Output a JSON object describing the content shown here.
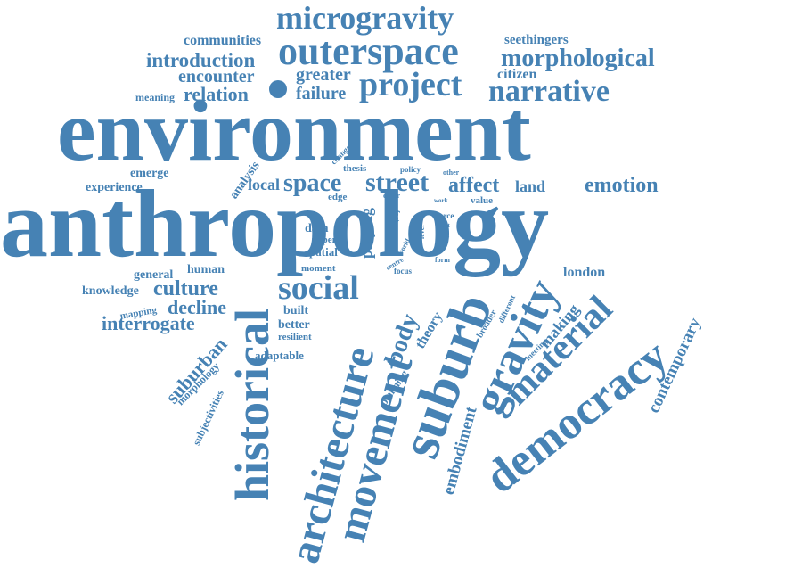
{
  "colors": {
    "word": "#4682b4",
    "background": "#ffffff"
  },
  "words": [
    {
      "text": "environment",
      "weight": 100
    },
    {
      "text": "anthropology",
      "weight": 98
    },
    {
      "text": "microgravity",
      "weight": 40
    },
    {
      "text": "outerspace",
      "weight": 45
    },
    {
      "text": "project",
      "weight": 40
    },
    {
      "text": "narrative",
      "weight": 35
    },
    {
      "text": "morphological",
      "weight": 30
    },
    {
      "text": "communities",
      "weight": 15
    },
    {
      "text": "introduction",
      "weight": 22
    },
    {
      "text": "encounter",
      "weight": 20
    },
    {
      "text": "greater",
      "weight": 18
    },
    {
      "text": "citizen",
      "weight": 16
    },
    {
      "text": "seethingers",
      "weight": 14
    },
    {
      "text": "relation",
      "weight": 22
    },
    {
      "text": "failure",
      "weight": 20
    },
    {
      "text": "meaning",
      "weight": 12
    },
    {
      "text": "analysis",
      "weight": 14
    },
    {
      "text": "change",
      "weight": 8
    },
    {
      "text": "thesis",
      "weight": 10
    },
    {
      "text": "policy",
      "weight": 8
    },
    {
      "text": "other",
      "weight": 7
    },
    {
      "text": "emerge",
      "weight": 14
    },
    {
      "text": "experience",
      "weight": 14
    },
    {
      "text": "local",
      "weight": 18
    },
    {
      "text": "space",
      "weight": 28
    },
    {
      "text": "street",
      "weight": 30
    },
    {
      "text": "affect",
      "weight": 24
    },
    {
      "text": "land",
      "weight": 18
    },
    {
      "text": "emotion",
      "weight": 24
    },
    {
      "text": "edge",
      "weight": 10
    },
    {
      "text": "order",
      "weight": 7
    },
    {
      "text": "work",
      "weight": 6
    },
    {
      "text": "value",
      "weight": 10
    },
    {
      "text": "fact",
      "weight": 6
    },
    {
      "text": "force",
      "weight": 8
    },
    {
      "text": "part",
      "weight": 6
    },
    {
      "text": "data",
      "weight": 12
    },
    {
      "text": "paper",
      "weight": 10
    },
    {
      "text": "spatial",
      "weight": 12
    },
    {
      "text": "playing",
      "weight": 16
    },
    {
      "text": "world",
      "weight": 7
    },
    {
      "text": "level",
      "weight": 7
    },
    {
      "text": "retail",
      "weight": 7
    },
    {
      "text": "centre",
      "weight": 7
    },
    {
      "text": "form",
      "weight": 7
    },
    {
      "text": "focus",
      "weight": 8
    },
    {
      "text": "moment",
      "weight": 10
    },
    {
      "text": "general",
      "weight": 14
    },
    {
      "text": "human",
      "weight": 14
    },
    {
      "text": "knowledge",
      "weight": 14
    },
    {
      "text": "culture",
      "weight": 25
    },
    {
      "text": "social",
      "weight": 38
    },
    {
      "text": "historical",
      "weight": 55
    },
    {
      "text": "mapping",
      "weight": 10
    },
    {
      "text": "decline",
      "weight": 22
    },
    {
      "text": "interrogate",
      "weight": 22
    },
    {
      "text": "built",
      "weight": 14
    },
    {
      "text": "better",
      "weight": 14
    },
    {
      "text": "resilient",
      "weight": 10
    },
    {
      "text": "adaptable",
      "weight": 12
    },
    {
      "text": "suburban",
      "weight": 22
    },
    {
      "text": "morphology",
      "weight": 12
    },
    {
      "text": "subjectivities",
      "weight": 12
    },
    {
      "text": "architecture",
      "weight": 52
    },
    {
      "text": "movement",
      "weight": 52
    },
    {
      "text": "body",
      "weight": 28
    },
    {
      "text": "theory",
      "weight": 16
    },
    {
      "text": "planning",
      "weight": 12
    },
    {
      "text": "suburb",
      "weight": 65
    },
    {
      "text": "embodiment",
      "weight": 20
    },
    {
      "text": "broader",
      "weight": 10
    },
    {
      "text": "different",
      "weight": 9
    },
    {
      "text": "meeting",
      "weight": 9
    },
    {
      "text": "gravity",
      "weight": 52
    },
    {
      "text": "material",
      "weight": 42
    },
    {
      "text": "making",
      "weight": 18
    },
    {
      "text": "london",
      "weight": 16
    },
    {
      "text": "democracy",
      "weight": 55
    },
    {
      "text": "contemporary",
      "weight": 20
    }
  ]
}
